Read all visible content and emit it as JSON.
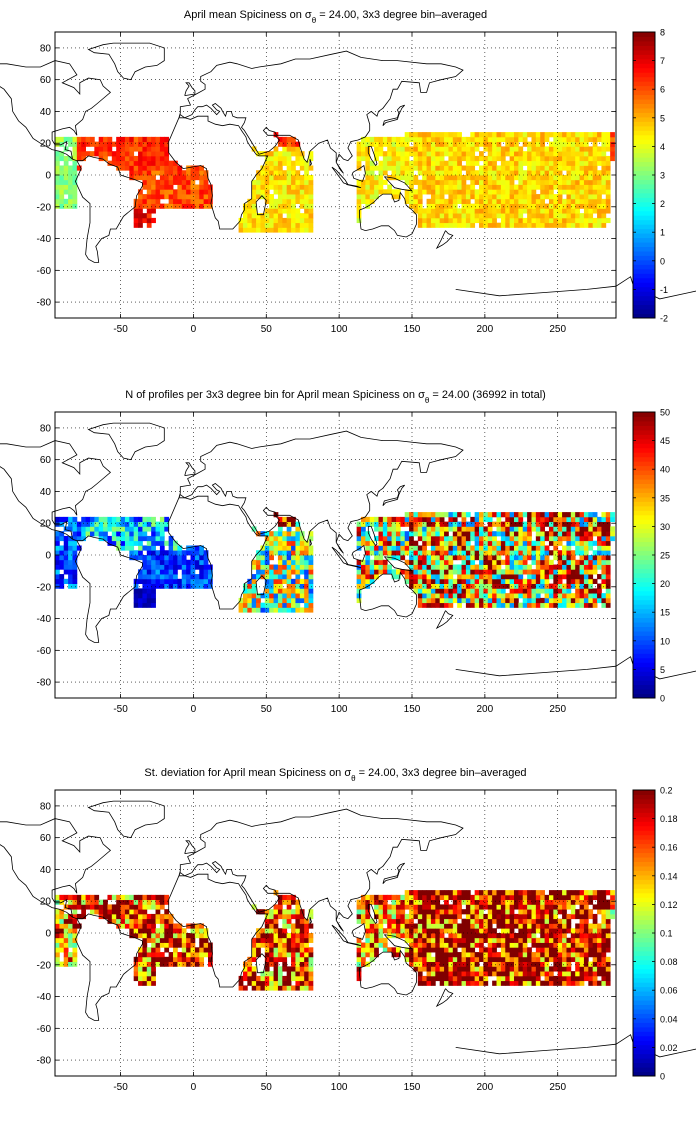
{
  "figure": {
    "panels": [
      {
        "id": "mean",
        "title": "April mean Spiciness on σθ = 24.00, 3x3 degree bin–averaged",
        "title_parts": {
          "before": "April mean Spiciness on σ",
          "sub": "θ",
          "after": " = 24.00, 3x3 degree bin–averaged"
        },
        "colorbar": {
          "min": -2,
          "max": 8,
          "ticks": [
            -2,
            -1,
            0,
            1,
            2,
            3,
            4,
            5,
            6,
            7,
            8
          ]
        }
      },
      {
        "id": "count",
        "title": "N of profiles per 3x3 degree bin for April mean Spiciness on σθ = 24.00 (36992 in total)",
        "title_parts": {
          "before": "N of profiles per 3x3 degree bin for April mean Spiciness on σ",
          "sub": "θ",
          "after": " = 24.00 (36992 in total)"
        },
        "colorbar": {
          "min": 0,
          "max": 50,
          "ticks": [
            0,
            5,
            10,
            15,
            20,
            25,
            30,
            35,
            40,
            45,
            50
          ]
        }
      },
      {
        "id": "std",
        "title": "St. deviation for April mean Spiciness on σθ = 24.00, 3x3 degree bin–averaged",
        "title_parts": {
          "before": "St. deviation for April mean Spiciness on σ",
          "sub": "θ",
          "after": " = 24.00, 3x3 degree bin–averaged"
        },
        "colorbar": {
          "min": 0,
          "max": 0.2,
          "ticks": [
            0,
            0.02,
            0.04,
            0.06,
            0.08,
            0.1,
            0.12,
            0.14,
            0.16,
            0.18,
            0.2
          ]
        }
      }
    ],
    "map_axes": {
      "xlim": [
        -95,
        290
      ],
      "ylim": [
        -90,
        90
      ],
      "x_ticks": [
        -50,
        0,
        50,
        100,
        150,
        200,
        250
      ],
      "y_ticks": [
        -80,
        -60,
        -40,
        -20,
        0,
        20,
        40,
        60,
        80
      ],
      "grid": "dotted"
    },
    "colormap": "jet"
  }
}
